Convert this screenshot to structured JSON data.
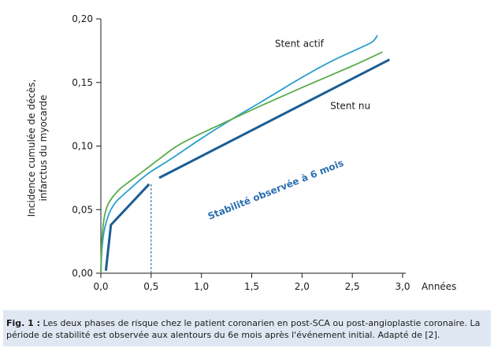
{
  "chart_data": {
    "type": "line",
    "xlabel": "Années",
    "ylabel_lines": [
      "Incidence cumulée de décès,",
      "infarctus du myocarde"
    ],
    "xlim": [
      0,
      3.0
    ],
    "ylim": [
      0,
      0.2
    ],
    "x_ticks": [
      "0,0",
      "0,5",
      "1,0",
      "1,5",
      "2,0",
      "2,5",
      "3,0"
    ],
    "x_tick_values": [
      0,
      0.5,
      1.0,
      1.5,
      2.0,
      2.5,
      3.0
    ],
    "y_ticks": [
      "0,00",
      "0,05",
      "0,10",
      "0,15",
      "0,20"
    ],
    "y_tick_values": [
      0,
      0.05,
      0.1,
      0.15,
      0.2
    ],
    "grid": false,
    "reference_line_x": 0.5,
    "series": [
      {
        "name": "Stent actif",
        "color": "#2a9fd0",
        "x": [
          0.0,
          0.01,
          0.03,
          0.06,
          0.1,
          0.15,
          0.2,
          0.3,
          0.4,
          0.5,
          0.7,
          1.0,
          1.3,
          1.6,
          2.0,
          2.3,
          2.6,
          2.7,
          2.75
        ],
        "y": [
          0.0,
          0.018,
          0.032,
          0.042,
          0.05,
          0.056,
          0.06,
          0.067,
          0.074,
          0.08,
          0.09,
          0.106,
          0.121,
          0.135,
          0.154,
          0.167,
          0.178,
          0.182,
          0.187
        ]
      },
      {
        "name": "",
        "color": "#5aab4a",
        "x": [
          0.0,
          0.01,
          0.03,
          0.06,
          0.1,
          0.15,
          0.2,
          0.3,
          0.4,
          0.5,
          0.6,
          0.7,
          0.8,
          1.0,
          1.3,
          1.6,
          2.0,
          2.5,
          2.8
        ],
        "y": [
          0.0,
          0.025,
          0.042,
          0.052,
          0.058,
          0.063,
          0.067,
          0.073,
          0.079,
          0.085,
          0.091,
          0.097,
          0.102,
          0.11,
          0.121,
          0.132,
          0.146,
          0.163,
          0.174
        ]
      },
      {
        "name": "Stent nu",
        "color": "#1b5d93",
        "segments": [
          {
            "x": [
              0.05,
              0.1,
              0.48
            ],
            "y": [
              0.002,
              0.038,
              0.07
            ]
          },
          {
            "x": [
              0.58,
              2.87
            ],
            "y": [
              0.075,
              0.168
            ]
          }
        ]
      }
    ],
    "annotations": [
      {
        "text": "Stent actif",
        "x": 1.73,
        "y": 0.178
      },
      {
        "text": "Stent nu",
        "x": 2.28,
        "y": 0.129
      },
      {
        "text": "Stabilité observée à 6 mois",
        "x": 1.08,
        "y": 0.042,
        "angle": -22,
        "color": "#2b6fb0"
      }
    ]
  },
  "caption": {
    "label": "Fig. 1 :",
    "text": " Les deux phases de risque chez le patient coronarien en post-SCA ou post-angioplastie coronaire. La période de stabilité est observée aux alentours du 6e mois après l'événement initial. Adapté de [2]."
  }
}
